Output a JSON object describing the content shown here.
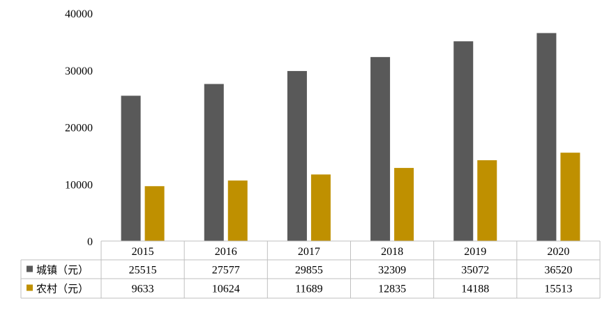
{
  "chart_data": {
    "type": "bar",
    "categories": [
      "2015",
      "2016",
      "2017",
      "2018",
      "2019",
      "2020"
    ],
    "series": [
      {
        "name": "城镇（元）",
        "values": [
          25515,
          27577,
          29855,
          32309,
          35072,
          36520
        ],
        "color": "#595959"
      },
      {
        "name": "农村（元）",
        "values": [
          9633,
          10624,
          11689,
          12835,
          14188,
          15513
        ],
        "color": "#bf9000"
      }
    ],
    "ylim": [
      0,
      40000
    ],
    "yticks": [
      0,
      10000,
      20000,
      30000,
      40000
    ],
    "ytick_labels": [
      "0",
      "10000",
      "20000",
      "30000",
      "40000"
    ],
    "grid": false,
    "legend": "data-table",
    "table_text_color": "#000000",
    "table_border_color": "#bfbfbf"
  }
}
